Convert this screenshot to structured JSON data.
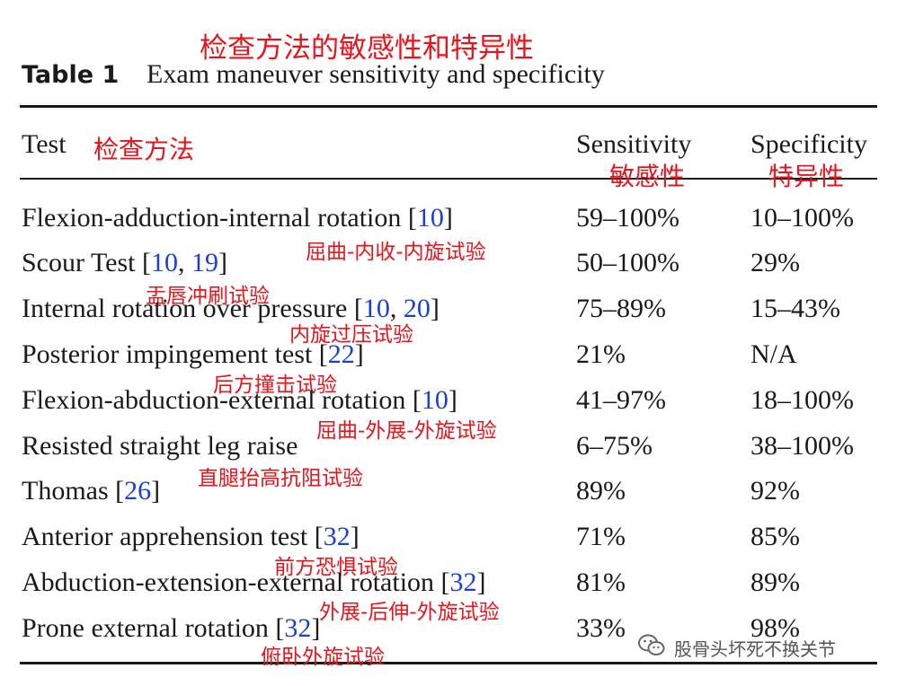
{
  "title_cn": "检查方法的敏感性和特异性",
  "caption": {
    "label": "Table 1",
    "text": "Exam maneuver sensitivity and specificity"
  },
  "headers": {
    "test": "Test",
    "test_cn": "检查方法",
    "sensitivity": "Sensitivity",
    "sensitivity_cn": "敏感性",
    "specificity": "Specificity",
    "specificity_cn": "特异性"
  },
  "rows": [
    {
      "test": "Flexion-adduction-internal rotation",
      "refs": [
        "10"
      ],
      "sensitivity": "59–100%",
      "specificity": "10–100%",
      "cn": "屈曲-内收-内旋试验"
    },
    {
      "test": "Scour Test",
      "refs": [
        "10",
        "19"
      ],
      "sensitivity": "50–100%",
      "specificity": "29%",
      "cn": "盂唇冲刷试验"
    },
    {
      "test": "Internal rotation over pressure",
      "refs": [
        "10",
        "20"
      ],
      "sensitivity": "75–89%",
      "specificity": "15–43%",
      "cn": "内旋过压试验"
    },
    {
      "test": "Posterior impingement test",
      "refs": [
        "22"
      ],
      "sensitivity": "21%",
      "specificity": "N/A",
      "cn": "后方撞击试验"
    },
    {
      "test": "Flexion-abduction-external rotation",
      "refs": [
        "10"
      ],
      "sensitivity": "41–97%",
      "specificity": "18–100%",
      "cn": "屈曲-外展-外旋试验"
    },
    {
      "test": "Resisted straight leg raise",
      "refs": [],
      "sensitivity": "6–75%",
      "specificity": "38–100%",
      "cn": "直腿抬高抗阻试验"
    },
    {
      "test": "Thomas",
      "refs": [
        "26"
      ],
      "sensitivity": "89%",
      "specificity": "92%",
      "cn": ""
    },
    {
      "test": "Anterior apprehension test",
      "refs": [
        "32"
      ],
      "sensitivity": "71%",
      "specificity": "85%",
      "cn": "前方恐惧试验"
    },
    {
      "test": "Abduction-extension-external rotation",
      "refs": [
        "32"
      ],
      "sensitivity": "81%",
      "specificity": "89%",
      "cn": "外展-后伸-外旋试验"
    },
    {
      "test": "Prone external rotation",
      "refs": [
        "32"
      ],
      "sensitivity": "33%",
      "specificity": "98%",
      "cn": "俯卧外旋试验"
    }
  ],
  "watermark": {
    "icon": "wechat-icon",
    "text": "股骨头坏死不换关节"
  }
}
